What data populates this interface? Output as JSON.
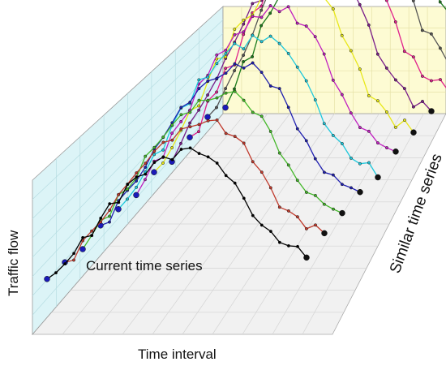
{
  "chart_data": {
    "type": "line",
    "subtype": "3d-stacked-line",
    "xlabel": "Time interval",
    "ylabel": "Traffic flow",
    "zlabel": "Similar time series",
    "annotation": "Current time series",
    "grid": true,
    "colors": {
      "back_wall": "#fdfbd3",
      "left_wall": "#dcf4f7",
      "floor": "#f1f1f1",
      "endpoint": "#1a1ab8"
    },
    "shape": [
      0,
      1,
      3,
      4,
      6,
      7,
      9,
      11,
      12,
      14,
      15,
      16,
      17,
      18,
      18,
      19,
      19,
      19,
      18,
      17,
      16,
      14,
      12,
      10,
      8,
      7,
      6,
      5,
      5,
      4
    ],
    "series": [
      {
        "color": "#000000",
        "scale": 10.0,
        "noise": [
          0.5,
          0.4,
          -0.3,
          0.2,
          0.5,
          -0.2,
          0.3,
          0.4,
          -0.4,
          0.2,
          0.3,
          -0.3,
          0.4,
          0.2,
          -0.2,
          0.3,
          0.5,
          -0.3,
          0.2,
          0.3,
          -0.5,
          0.4,
          0.2,
          -0.3,
          0.3,
          0.4,
          -0.2,
          0.3,
          0.2,
          -0.4
        ]
      },
      {
        "color": "#c0392b",
        "scale": 10.8,
        "noise": [
          0.3,
          -0.4,
          0.2,
          0.5,
          -0.3,
          0.3,
          0.4,
          -0.2,
          0.3,
          -0.4,
          0.2,
          0.4,
          -0.3,
          0.2,
          0.5,
          -0.2,
          0.3,
          0.4,
          -0.4,
          0.2,
          0.3,
          -0.2,
          0.4,
          0.3,
          -0.3,
          0.2,
          0.4,
          -0.2,
          0.3,
          0.2
        ]
      },
      {
        "color": "#44b82a",
        "scale": 11.6,
        "noise": [
          -0.3,
          0.4,
          0.3,
          -0.2,
          0.5,
          0.2,
          -0.4,
          0.3,
          0.4,
          -0.3,
          0.2,
          0.5,
          -0.2,
          0.3,
          0.3,
          -0.4,
          0.2,
          0.4,
          0.3,
          -0.2,
          0.3,
          0.4,
          -0.3,
          0.2,
          0.3,
          -0.2,
          0.4,
          0.3,
          -0.3,
          0.2
        ]
      },
      {
        "color": "#2020b0",
        "scale": 12.4,
        "noise": [
          0.4,
          -0.2,
          0.3,
          0.5,
          -0.4,
          0.2,
          0.3,
          -0.3,
          0.4,
          0.2,
          -0.2,
          0.4,
          0.3,
          -0.4,
          0.2,
          0.3,
          -0.2,
          0.4,
          0.3,
          -0.3,
          0.4,
          0.2,
          -0.3,
          0.3,
          0.2,
          -0.4,
          0.3,
          0.2,
          -0.2,
          0.3
        ]
      },
      {
        "color": "#1ec8dc",
        "scale": 13.2,
        "noise": [
          0.2,
          0.3,
          -0.4,
          0.3,
          0.2,
          -0.3,
          0.4,
          0.3,
          -0.2,
          0.4,
          -0.3,
          0.2,
          0.3,
          0.4,
          -0.2,
          0.3,
          -0.4,
          0.2,
          0.4,
          0.3,
          -0.2,
          0.3,
          0.2,
          -0.4,
          0.3,
          0.4,
          -0.2,
          0.2,
          0.3,
          -0.3
        ]
      },
      {
        "color": "#c020c0",
        "scale": 14.0,
        "noise": [
          -0.2,
          0.4,
          0.3,
          -0.3,
          0.2,
          0.4,
          -0.4,
          0.3,
          0.2,
          0.3,
          -0.2,
          0.4,
          -0.3,
          0.3,
          0.2,
          0.4,
          -0.2,
          0.3,
          -0.4,
          0.3,
          0.2,
          0.4,
          -0.3,
          0.2,
          0.3,
          -0.2,
          0.4,
          0.2,
          -0.3,
          0.3
        ]
      },
      {
        "color": "#e8e818",
        "scale": 14.8,
        "noise": [
          0.3,
          0.2,
          -0.3,
          0.4,
          0.3,
          -0.2,
          0.2,
          0.4,
          -0.4,
          0.3,
          0.2,
          -0.3,
          0.4,
          0.2,
          0.3,
          -0.4,
          0.3,
          0.2,
          -0.2,
          0.4,
          0.3,
          -0.3,
          0.2,
          0.4,
          -0.2,
          0.3,
          0.2,
          -0.3,
          0.4,
          0.2
        ]
      },
      {
        "color": "#7a1e8a",
        "scale": 15.6,
        "noise": [
          -0.4,
          0.3,
          0.2,
          0.4,
          -0.2,
          0.3,
          0.2,
          -0.3,
          0.4,
          0.3,
          -0.4,
          0.2,
          0.3,
          -0.2,
          0.4,
          0.3,
          0.2,
          -0.3,
          0.3,
          0.4,
          -0.2,
          0.2,
          0.3,
          -0.4,
          0.3,
          0.2,
          0.4,
          -0.3,
          0.2,
          0.3
        ]
      },
      {
        "color": "#e0208c",
        "scale": 16.4,
        "noise": [
          0.2,
          -0.3,
          0.4,
          0.2,
          0.3,
          -0.4,
          0.3,
          0.2,
          -0.2,
          0.4,
          0.3,
          -0.3,
          0.2,
          0.4,
          -0.4,
          0.3,
          0.2,
          0.3,
          -0.2,
          0.4,
          0.2,
          -0.3,
          0.3,
          0.4,
          -0.2,
          0.3,
          -0.4,
          0.2,
          0.3,
          0.2
        ]
      },
      {
        "color": "#555555",
        "scale": 17.2,
        "noise": [
          0.4,
          0.2,
          -0.2,
          0.3,
          -0.4,
          0.3,
          0.4,
          0.2,
          -0.3,
          0.3,
          0.2,
          0.4,
          -0.2,
          0.3,
          -0.3,
          0.4,
          0.2,
          -0.4,
          0.3,
          0.2,
          0.4,
          -0.2,
          0.3,
          0.2,
          -0.3,
          0.4,
          0.2,
          -0.2,
          0.3,
          0.3
        ]
      },
      {
        "color": "#1a7a1a",
        "scale": 18.0,
        "noise": [
          -0.3,
          0.2,
          0.4,
          -0.2,
          0.3,
          0.3,
          -0.4,
          0.2,
          0.4,
          -0.3,
          0.3,
          0.2,
          0.4,
          -0.2,
          0.3,
          -0.3,
          0.4,
          0.2,
          0.3,
          -0.4,
          0.2,
          0.3,
          0.4,
          -0.2,
          0.2,
          0.3,
          -0.3,
          0.4,
          0.2,
          0.3
        ]
      }
    ]
  }
}
